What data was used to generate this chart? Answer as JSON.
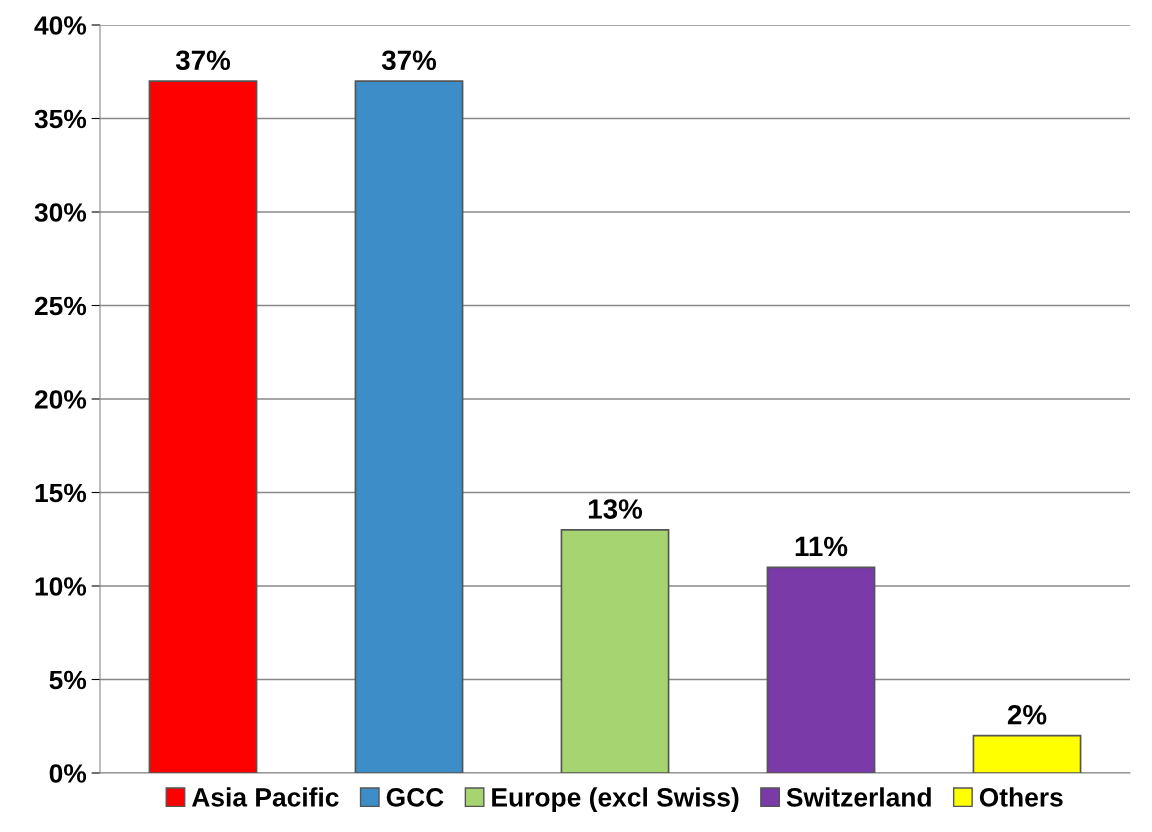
{
  "chart_data": {
    "type": "bar",
    "categories": [
      null,
      null,
      null,
      null,
      null
    ],
    "series": [
      {
        "name": "Asia Pacific",
        "color": "#ff0000",
        "values": [
          37,
          null,
          null,
          null,
          null
        ],
        "value_labels": [
          "37%",
          null,
          null,
          null,
          null
        ]
      },
      {
        "name": "GCC",
        "color": "#3c8dc8",
        "values": [
          null,
          37,
          null,
          null,
          null
        ],
        "value_labels": [
          null,
          "37%",
          null,
          null,
          null
        ]
      },
      {
        "name": "Europe (excl Swiss)",
        "color": "#a6d470",
        "values": [
          null,
          null,
          13,
          null,
          null
        ],
        "value_labels": [
          null,
          null,
          "13%",
          null,
          null
        ]
      },
      {
        "name": "Switzerland",
        "color": "#7a3aa8",
        "values": [
          null,
          null,
          null,
          11,
          null
        ],
        "value_labels": [
          null,
          null,
          null,
          "11%",
          null
        ]
      },
      {
        "name": "Others",
        "color": "#ffff00",
        "values": [
          null,
          null,
          null,
          null,
          2
        ],
        "value_labels": [
          null,
          null,
          null,
          null,
          "2%"
        ]
      }
    ],
    "ylim": [
      0,
      40
    ],
    "yticks": [
      {
        "value": 0,
        "label": "0%"
      },
      {
        "value": 5,
        "label": "5%"
      },
      {
        "value": 10,
        "label": "10%"
      },
      {
        "value": 15,
        "label": "15%"
      },
      {
        "value": 20,
        "label": "20%"
      },
      {
        "value": 25,
        "label": "25%"
      },
      {
        "value": 30,
        "label": "30%"
      },
      {
        "value": 35,
        "label": "35%"
      },
      {
        "value": 40,
        "label": "40%"
      }
    ],
    "grid": "y",
    "legend": "bottom"
  }
}
